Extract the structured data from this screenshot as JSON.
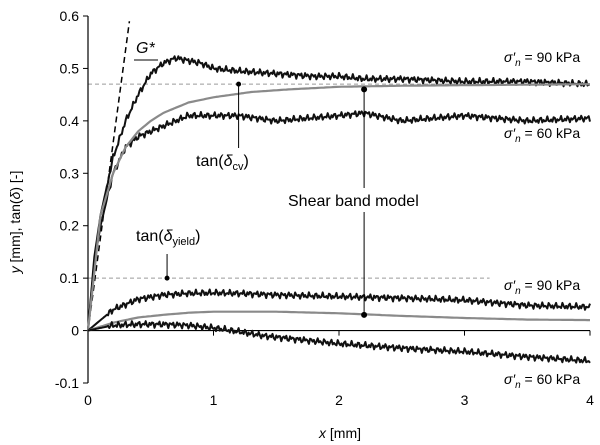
{
  "chart_data": {
    "type": "line",
    "xlabel": {
      "var": "x",
      "rest": " [mm]"
    },
    "ylabel": {
      "var1": "y",
      "mid": " [mm], tan(",
      "var2": "δ",
      "end": ") [-]"
    },
    "xlim": [
      0,
      4
    ],
    "ylim": [
      -0.1,
      0.6
    ],
    "xticks": [
      "0",
      "1",
      "2",
      "3",
      "4"
    ],
    "yticks": [
      "-0.1",
      "0",
      "0.1",
      "0.2",
      "0.3",
      "0.4",
      "0.5",
      "0.6"
    ],
    "grid": false,
    "series": [
      {
        "style": "measured",
        "x": [
          0,
          0.05,
          0.1,
          0.2,
          0.3,
          0.4,
          0.5,
          0.6,
          0.7,
          0.8,
          0.9,
          1.0,
          1.2,
          1.5,
          1.8,
          2.0,
          2.2,
          2.5,
          3.0,
          3.5,
          4.0
        ],
        "y": [
          0,
          0.14,
          0.22,
          0.33,
          0.4,
          0.45,
          0.49,
          0.51,
          0.52,
          0.515,
          0.51,
          0.5,
          0.495,
          0.49,
          0.485,
          0.485,
          0.48,
          0.48,
          0.475,
          0.475,
          0.47
        ]
      },
      {
        "style": "measured",
        "x": [
          0,
          0.05,
          0.1,
          0.2,
          0.3,
          0.4,
          0.5,
          0.6,
          0.8,
          1.0,
          1.2,
          1.5,
          2.0,
          2.2,
          2.5,
          3.0,
          3.5,
          4.0
        ],
        "y": [
          0,
          0.13,
          0.2,
          0.3,
          0.35,
          0.37,
          0.38,
          0.39,
          0.41,
          0.41,
          0.41,
          0.4,
          0.41,
          0.415,
          0.4,
          0.41,
          0.4,
          0.405
        ]
      },
      {
        "style": "model",
        "x": [
          0,
          0.1,
          0.2,
          0.3,
          0.4,
          0.5,
          0.6,
          0.8,
          1.0,
          1.3,
          1.6,
          2.0,
          2.5,
          3.0,
          3.5,
          4.0
        ],
        "y": [
          0,
          0.22,
          0.3,
          0.35,
          0.38,
          0.4,
          0.415,
          0.435,
          0.445,
          0.455,
          0.46,
          0.465,
          0.467,
          0.468,
          0.469,
          0.47
        ]
      },
      {
        "style": "measured",
        "x": [
          0,
          0.2,
          0.4,
          0.6,
          0.8,
          1.0,
          1.2,
          1.5,
          2.0,
          2.5,
          3.0,
          3.5,
          4.0
        ],
        "y": [
          0,
          0.04,
          0.06,
          0.068,
          0.071,
          0.072,
          0.071,
          0.068,
          0.065,
          0.062,
          0.058,
          0.048,
          0.045
        ]
      },
      {
        "style": "model",
        "x": [
          0,
          0.2,
          0.4,
          0.6,
          0.8,
          1.0,
          1.5,
          2.0,
          2.5,
          3.0,
          3.5,
          4.0
        ],
        "y": [
          0,
          0.015,
          0.025,
          0.03,
          0.034,
          0.036,
          0.036,
          0.033,
          0.028,
          0.024,
          0.021,
          0.02
        ]
      },
      {
        "style": "measured",
        "x": [
          0,
          0.2,
          0.4,
          0.6,
          0.8,
          1.0,
          1.2,
          1.4,
          1.6,
          1.8,
          2.0,
          2.3,
          2.6,
          3.0,
          3.5,
          4.0
        ],
        "y": [
          0,
          0.01,
          0.012,
          0.012,
          0.01,
          0.005,
          -0.002,
          -0.01,
          -0.015,
          -0.02,
          -0.025,
          -0.03,
          -0.035,
          -0.04,
          -0.05,
          -0.058
        ]
      }
    ],
    "reference_lines": [
      {
        "y": 0.47,
        "style": "dashed"
      },
      {
        "y": 0.1,
        "style": "dashed"
      }
    ],
    "tangent_line": {
      "x": [
        0,
        0.33
      ],
      "y": [
        0,
        0.59
      ],
      "label": "G*"
    },
    "annotations": {
      "tan_cv": {
        "prefix": "tan(",
        "sym": "δ",
        "sub": "cv",
        "suffix": ")"
      },
      "tan_yield": {
        "prefix": "tan(",
        "sym": "δ",
        "sub": "yield",
        "suffix": ")"
      },
      "model": "Shear band model"
    },
    "series_labels": [
      {
        "sym": "σ′",
        "sub": "n",
        "rest": " = 90 kPa"
      },
      {
        "sym": "σ′",
        "sub": "n",
        "rest": " = 60 kPa"
      },
      {
        "sym": "σ′",
        "sub": "n",
        "rest": " = 90 kPa"
      },
      {
        "sym": "σ′",
        "sub": "n",
        "rest": " = 60 kPa"
      }
    ],
    "colors": {
      "measured": "#111111",
      "model": "#8a8a8a",
      "reference": "#9a9a9a"
    }
  }
}
